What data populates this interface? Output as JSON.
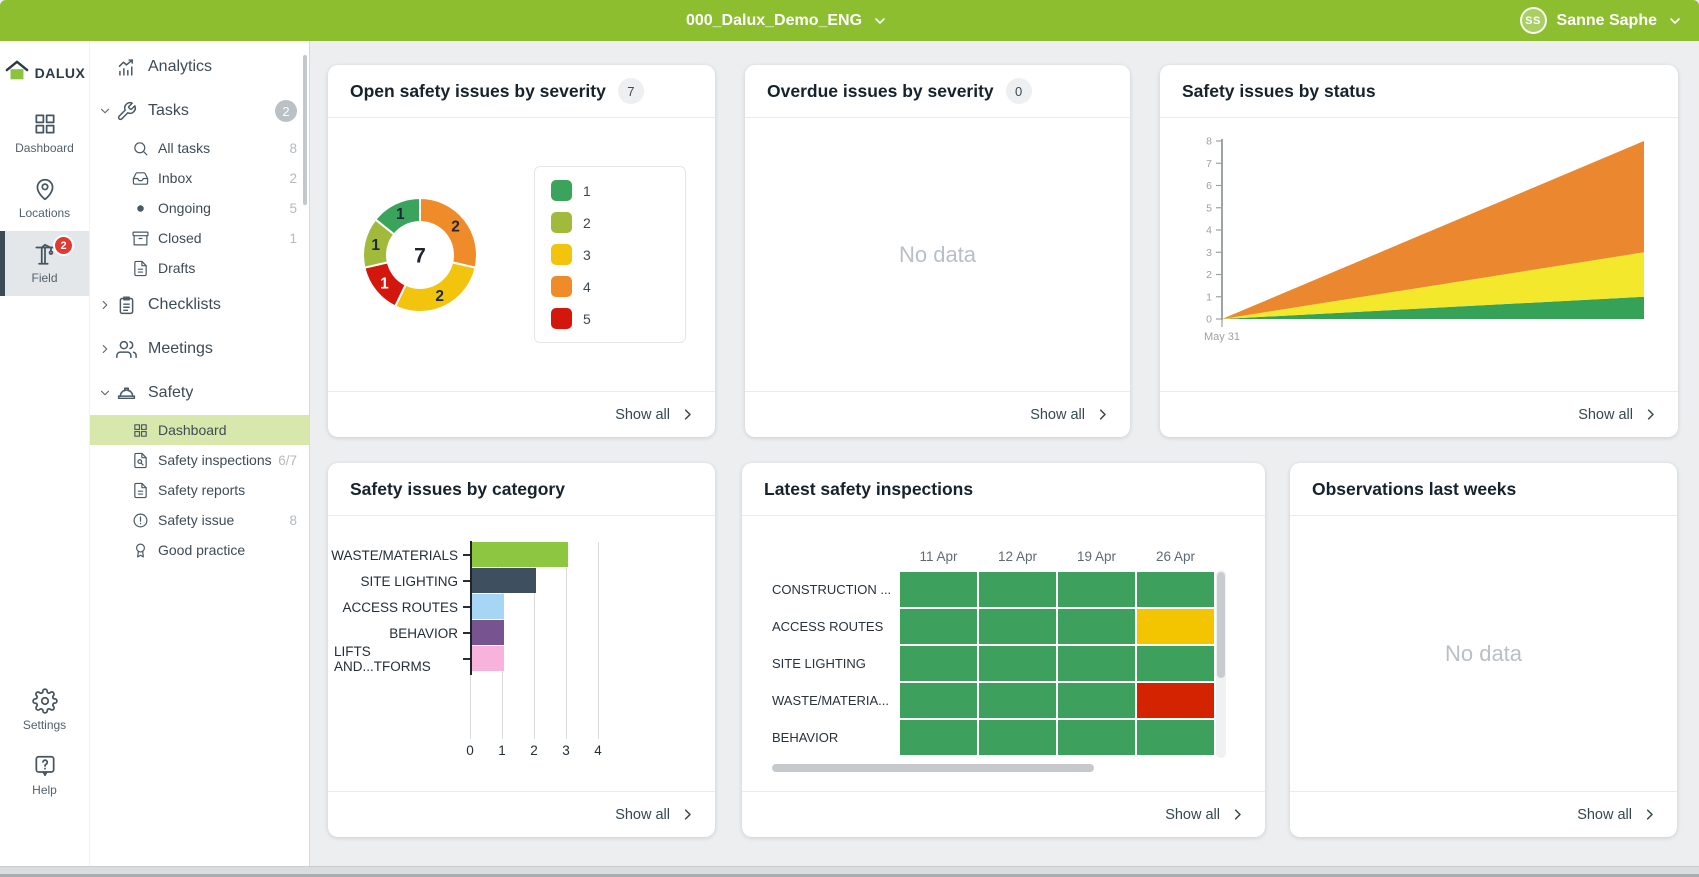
{
  "topbar": {
    "project_name": "000_Dalux_Demo_ENG",
    "user_name": "Sanne Saphe",
    "user_initials": "SS"
  },
  "brand": {
    "logo_text": "DALUX"
  },
  "rail": {
    "items": [
      {
        "id": "dashboard",
        "label": "Dashboard",
        "icon": "grid-large",
        "selected": false
      },
      {
        "id": "locations",
        "label": "Locations",
        "icon": "map-pin",
        "selected": false
      },
      {
        "id": "field",
        "label": "Field",
        "icon": "crane",
        "badge": "2",
        "selected": true
      }
    ],
    "bottom": [
      {
        "id": "settings",
        "label": "Settings",
        "icon": "gear"
      },
      {
        "id": "help",
        "label": "Help",
        "icon": "help-bubble"
      }
    ]
  },
  "sidebar": {
    "items": [
      {
        "id": "analytics",
        "label": "Analytics",
        "icon": "analytics",
        "level": 0
      },
      {
        "id": "tasks",
        "label": "Tasks",
        "icon": "wrench",
        "level": 0,
        "chevron": "down",
        "badge": "2"
      },
      {
        "id": "all-tasks",
        "label": "All tasks",
        "icon": "search",
        "level": 1,
        "count": "8"
      },
      {
        "id": "inbox",
        "label": "Inbox",
        "icon": "inbox",
        "level": 1,
        "count": "2"
      },
      {
        "id": "ongoing",
        "label": "Ongoing",
        "icon": "dot",
        "level": 1,
        "count": "5"
      },
      {
        "id": "closed",
        "label": "Closed",
        "icon": "archive",
        "level": 1,
        "count": "1"
      },
      {
        "id": "drafts",
        "label": "Drafts",
        "icon": "file",
        "level": 1
      },
      {
        "id": "checklists",
        "label": "Checklists",
        "icon": "clipboard",
        "level": 0,
        "chevron": "right"
      },
      {
        "id": "meetings",
        "label": "Meetings",
        "icon": "users",
        "level": 0,
        "chevron": "right"
      },
      {
        "id": "safety",
        "label": "Safety",
        "icon": "hardhat",
        "level": 0,
        "chevron": "down"
      },
      {
        "id": "safety-dashboard",
        "label": "Dashboard",
        "icon": "grid",
        "level": 1,
        "selected": true
      },
      {
        "id": "safety-inspections",
        "label": "Safety inspections",
        "icon": "file-search",
        "level": 1,
        "count": "6/7"
      },
      {
        "id": "safety-reports",
        "label": "Safety reports",
        "icon": "file",
        "level": 1
      },
      {
        "id": "safety-issue",
        "label": "Safety issue",
        "icon": "alert",
        "level": 1,
        "count": "8"
      },
      {
        "id": "good-practice",
        "label": "Good practice",
        "icon": "award",
        "level": 1
      }
    ]
  },
  "common": {
    "show_all": "Show all",
    "no_data": "No data"
  },
  "cards": {
    "open_issues": {
      "title": "Open safety issues by severity",
      "badge": "7"
    },
    "overdue": {
      "title": "Overdue issues by severity",
      "badge": "0"
    },
    "status": {
      "title": "Safety issues by status"
    },
    "category": {
      "title": "Safety issues by category"
    },
    "inspections": {
      "title": "Latest safety inspections"
    },
    "observations": {
      "title": "Observations last weeks"
    }
  },
  "chart_data": [
    {
      "id": "severity_donut",
      "type": "pie",
      "donut": true,
      "title": "Open safety issues by severity",
      "total": 7,
      "center_label": "7",
      "values_by_severity": {
        "1": 1,
        "2": 1,
        "3": 2,
        "4": 2,
        "5": 1
      },
      "legend_position": "right",
      "legend": [
        {
          "label": "1",
          "color": "#3ba45c"
        },
        {
          "label": "2",
          "color": "#a2ba3b"
        },
        {
          "label": "3",
          "color": "#f2c40e"
        },
        {
          "label": "4",
          "color": "#f08b2a"
        },
        {
          "label": "5",
          "color": "#d3170c"
        }
      ],
      "segments_clockwise_from_top": [
        {
          "label": "2",
          "severity": "4",
          "value": 2,
          "color": "#f08b2a",
          "text_color": "#1d2a33"
        },
        {
          "label": "2",
          "severity": "3",
          "value": 2,
          "color": "#f2c40e",
          "text_color": "#1d2a33"
        },
        {
          "label": "1",
          "severity": "5",
          "value": 1,
          "color": "#d3170c",
          "text_color": "#ffffff"
        },
        {
          "label": "1",
          "severity": "2",
          "value": 1,
          "color": "#a2ba3b",
          "text_color": "#1d2a33"
        },
        {
          "label": "1",
          "severity": "1",
          "value": 1,
          "color": "#3ba45c",
          "text_color": "#1d2a33"
        }
      ]
    },
    {
      "id": "status_area",
      "type": "area",
      "title": "Safety issues by status",
      "stacked": true,
      "ylim": [
        0,
        8
      ],
      "yticks": [
        0,
        1,
        2,
        3,
        4,
        5,
        6,
        7,
        8
      ],
      "x_tick_labels": [
        "May 31"
      ],
      "series_bottom_up": [
        {
          "name": "green",
          "color": "#36a257",
          "values": [
            0,
            1
          ]
        },
        {
          "name": "yellow",
          "color": "#f3e82b",
          "values": [
            0,
            2
          ]
        },
        {
          "name": "orange",
          "color": "#ea872f",
          "values": [
            0,
            5
          ]
        }
      ],
      "stacked_totals_at_right": [
        1,
        3,
        8
      ],
      "grid": false,
      "legend": false
    },
    {
      "id": "category_bar",
      "type": "bar",
      "title": "Safety issues by category",
      "orientation": "horizontal",
      "categories": [
        "WASTE/MATERIALS",
        "SITE LIGHTING",
        "ACCESS ROUTES",
        "BEHAVIOR",
        "LIFTS AND...TFORMS"
      ],
      "values": [
        3,
        2,
        1,
        1,
        1
      ],
      "colors": [
        "#8dc63f",
        "#3e4f5f",
        "#a7d5f4",
        "#77538f",
        "#f7b3dc"
      ],
      "xlim": [
        0,
        4
      ],
      "xticks": [
        0,
        1,
        2,
        3,
        4
      ],
      "grid": true
    },
    {
      "id": "inspections_heatmap",
      "type": "heatmap",
      "title": "Latest safety inspections",
      "columns": [
        "11 Apr",
        "12 Apr",
        "19 Apr",
        "26 Apr"
      ],
      "rows": [
        "CONSTRUCTION ...",
        "ACCESS ROUTES",
        "SITE LIGHTING",
        "WASTE/MATERIA...",
        "BEHAVIOR"
      ],
      "cells": [
        [
          "green",
          "green",
          "green",
          "green"
        ],
        [
          "green",
          "green",
          "green",
          "yellow"
        ],
        [
          "green",
          "green",
          "green",
          "green"
        ],
        [
          "green",
          "green",
          "green",
          "red"
        ],
        [
          "green",
          "green",
          "green",
          "green"
        ]
      ],
      "status_colors": {
        "green": "#3da05c",
        "yellow": "#f2c500",
        "red": "#d32300"
      }
    }
  ]
}
